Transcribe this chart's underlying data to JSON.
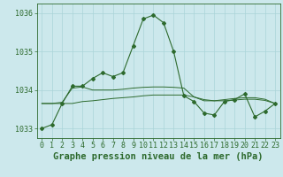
{
  "x": [
    0,
    1,
    2,
    3,
    4,
    5,
    6,
    7,
    8,
    9,
    10,
    11,
    12,
    13,
    14,
    15,
    16,
    17,
    18,
    19,
    20,
    21,
    22,
    23
  ],
  "line_main": [
    1033.0,
    1033.1,
    1033.65,
    1034.1,
    1034.1,
    1034.3,
    1034.45,
    1034.35,
    1034.45,
    1035.15,
    1035.85,
    1035.95,
    1035.75,
    1035.0,
    1033.85,
    1033.7,
    1033.4,
    1033.35,
    1033.7,
    1033.75,
    1033.9,
    1033.3,
    1033.45,
    1033.65
  ],
  "line_smooth1": [
    1033.65,
    1033.65,
    1033.65,
    1033.65,
    1033.7,
    1033.72,
    1033.75,
    1033.78,
    1033.8,
    1033.82,
    1033.85,
    1033.87,
    1033.87,
    1033.87,
    1033.87,
    1033.82,
    1033.75,
    1033.72,
    1033.72,
    1033.74,
    1033.76,
    1033.76,
    1033.73,
    1033.65
  ],
  "line_smooth2": [
    1033.65,
    1033.65,
    1033.68,
    1034.05,
    1034.08,
    1034.0,
    1034.0,
    1034.0,
    1034.02,
    1034.05,
    1034.07,
    1034.08,
    1034.08,
    1034.07,
    1034.05,
    1033.82,
    1033.72,
    1033.72,
    1033.75,
    1033.78,
    1033.8,
    1033.8,
    1033.76,
    1033.65
  ],
  "line_color": "#2d6a2d",
  "bg_color": "#cce8ec",
  "grid_color": "#aad4d8",
  "ylim": [
    1032.75,
    1036.25
  ],
  "yticks": [
    1033,
    1034,
    1035,
    1036
  ],
  "xlim": [
    -0.5,
    23.5
  ],
  "xlabel": "Graphe pression niveau de la mer (hPa)",
  "xlabel_fontsize": 7.5,
  "tick_fontsize": 6.0,
  "figsize": [
    3.2,
    2.0
  ],
  "dpi": 100
}
